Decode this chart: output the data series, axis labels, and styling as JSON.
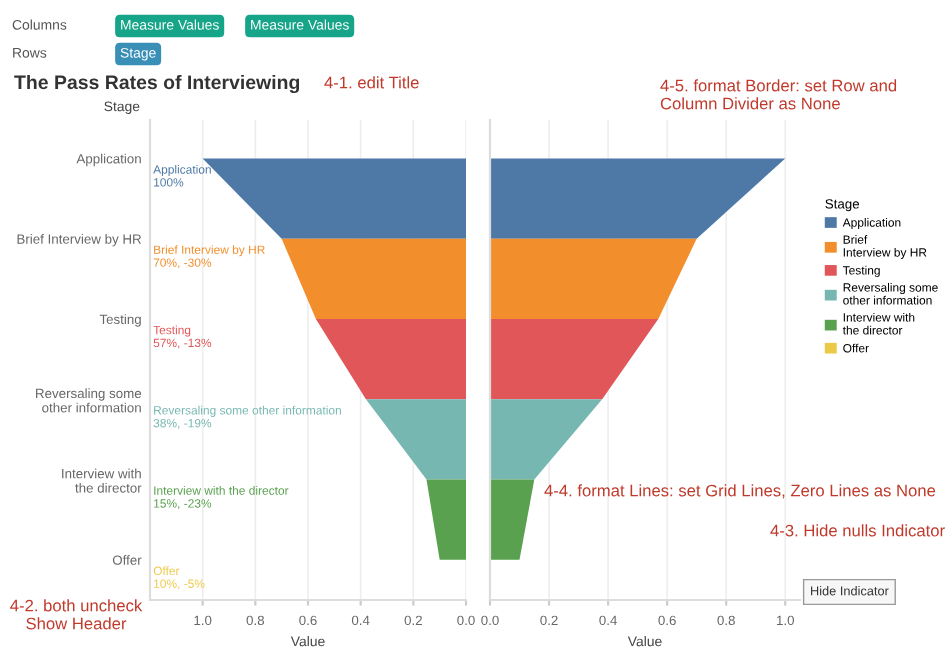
{
  "chart_data": [
    {
      "type": "area",
      "orientation": "horizontal",
      "title": "The Pass Rates of Interviewing",
      "ylabel": "Stage",
      "xlabel": "Value",
      "categories": [
        "Application",
        "Brief Interview by HR",
        "Testing",
        "Reversaling some other information",
        "Interview with the director",
        "Offer"
      ],
      "series": [
        {
          "color": "#4e79a7",
          "values": [
            1.0,
            0.7,
            null,
            null,
            null,
            null
          ],
          "value_labels": [
            "Application\n100%",
            null,
            null,
            null,
            null,
            null
          ]
        },
        {
          "color": "#f28e2b",
          "values": [
            null,
            0.7,
            0.57,
            null,
            null,
            null
          ],
          "value_labels": [
            null,
            "Brief Interview by HR\n70%, -30%",
            null,
            null,
            null,
            null
          ]
        },
        {
          "color": "#e15759",
          "values": [
            null,
            null,
            0.57,
            0.38,
            null,
            null
          ],
          "value_labels": [
            null,
            null,
            "Testing\n57%, -13%",
            null,
            null,
            null
          ]
        },
        {
          "color": "#76b7b2",
          "values": [
            null,
            null,
            null,
            0.38,
            0.15,
            null
          ],
          "value_labels": [
            null,
            null,
            null,
            "Reversaling some other information\n38%, -19%",
            null,
            null
          ]
        },
        {
          "color": "#59a14f",
          "values": [
            null,
            null,
            null,
            null,
            0.15,
            0.1
          ],
          "value_labels": [
            null,
            null,
            null,
            null,
            "Interview with the director\n15%, -23%",
            null
          ]
        },
        {
          "color": "#edc948",
          "values": [
            null,
            null,
            null,
            null,
            null,
            null
          ],
          "value_labels": [
            null,
            null,
            null,
            null,
            null,
            "Offer\n10%, -5%"
          ]
        }
      ],
      "xlim": [
        1.2,
        0
      ],
      "xticks": [
        {
          "value": 1,
          "label": "1.0"
        },
        {
          "value": 0.8,
          "label": "0.8"
        },
        {
          "value": 0.6,
          "label": "0.6"
        },
        {
          "value": 0.4,
          "label": "0.4"
        },
        {
          "value": 0.2,
          "label": "0.2"
        },
        {
          "value": 0,
          "label": "0.0"
        }
      ],
      "grid": "x",
      "annotations": [
        "Columns",
        "Measure Values",
        "Measure Values",
        "Rows",
        "Stage",
        "4-1. edit Title",
        "4-5. format Border: set Row and Column Divider as None",
        "4-2. both uncheck Show Header",
        "4-4. format Lines: set Grid Lines, Zero Lines as None",
        "4-3. Hide nulls Indicator",
        "Hide Indicator"
      ]
    },
    {
      "type": "area",
      "orientation": "horizontal",
      "xlabel": "Value",
      "tick_labels": "x",
      "legend": "right",
      "legend_title": "Stage",
      "series": [
        {
          "name": "Application",
          "color": "#4e79a7",
          "values": [
            1.0,
            0.7,
            null,
            null,
            null,
            null
          ]
        },
        {
          "name": "Brief Interview by HR",
          "color": "#f28e2b",
          "values": [
            null,
            0.7,
            0.57,
            null,
            null,
            null
          ]
        },
        {
          "name": "Testing",
          "color": "#e15759",
          "values": [
            null,
            null,
            0.57,
            0.38,
            null,
            null
          ]
        },
        {
          "name": "Reversaling some other information",
          "color": "#76b7b2",
          "values": [
            null,
            null,
            null,
            0.38,
            0.15,
            null
          ]
        },
        {
          "name": "Interview with the director",
          "color": "#59a14f",
          "values": [
            null,
            null,
            null,
            null,
            0.15,
            0.1
          ]
        },
        {
          "name": "Offer",
          "color": "#edc948",
          "values": [
            null,
            null,
            null,
            null,
            null,
            null
          ]
        }
      ],
      "xlim": [
        0,
        1.05
      ],
      "xticks": [
        {
          "value": 0,
          "label": "0.0"
        },
        {
          "value": 0.2,
          "label": "0.2"
        },
        {
          "value": 0.4,
          "label": "0.4"
        },
        {
          "value": 0.6,
          "label": "0.6"
        },
        {
          "value": 0.8,
          "label": "0.8"
        },
        {
          "value": 1,
          "label": "1.0"
        }
      ],
      "grid": "x"
    }
  ]
}
